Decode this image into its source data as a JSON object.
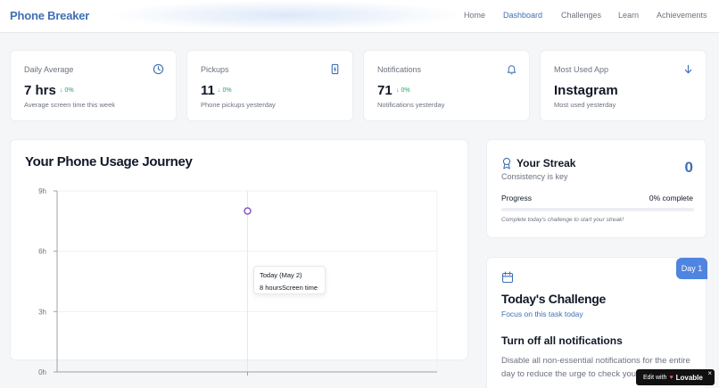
{
  "header": {
    "brand": "Phone Breaker",
    "nav": [
      "Home",
      "Dashboard",
      "Challenges",
      "Learn",
      "Achievements"
    ],
    "active": "Dashboard"
  },
  "stats": [
    {
      "label": "Daily Average",
      "value": "7 hrs",
      "change": "0%",
      "sub": "Average screen time this week",
      "icon": "clock-icon"
    },
    {
      "label": "Pickups",
      "value": "11",
      "change": "0%",
      "sub": "Phone pickups yesterday",
      "icon": "phone-icon"
    },
    {
      "label": "Notifications",
      "value": "71",
      "change": "0%",
      "sub": "Notifications yesterday",
      "icon": "bell-icon"
    },
    {
      "label": "Most Used App",
      "value": "Instagram",
      "change": "",
      "sub": "Most used yesterday",
      "icon": "arrow-down-icon"
    }
  ],
  "usage_chart": {
    "title": "Your Phone Usage Journey",
    "tooltip": {
      "title": "Today (May 2)",
      "line": "8 hoursScreen time"
    }
  },
  "chart_data": {
    "type": "scatter",
    "title": "Your Phone Usage Journey",
    "y_ticks": [
      "0h",
      "3h",
      "6h",
      "9h"
    ],
    "ylim": [
      0,
      9
    ],
    "points": [
      {
        "x": "Today (May 2)",
        "y": 8
      }
    ],
    "grid": true
  },
  "streak": {
    "title": "Your Streak",
    "subtitle": "Consistency is key",
    "count": "0",
    "progress_label": "Progress",
    "progress_text": "0% complete",
    "progress": 0,
    "note": "Complete today's challenge to start your streak!"
  },
  "challenge": {
    "badge": "Day 1",
    "title": "Today's Challenge",
    "subtitle": "Focus on this task today",
    "task": "Turn off all notifications",
    "description": "Disable all non-essential notifications for the entire day to reduce the urge to check your phone."
  },
  "lovable": {
    "prefix": "Edit with",
    "name": "Lovable",
    "close": "×"
  },
  "colors": {
    "accent": "#3f6fb5",
    "positive": "#22a55b",
    "point": "#7c4dbd"
  }
}
